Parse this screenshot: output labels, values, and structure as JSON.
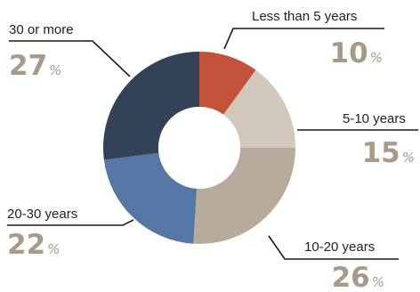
{
  "chart_data": {
    "type": "pie",
    "donut": true,
    "title": "",
    "categories": [
      "Less than 5 years",
      "5-10 years",
      "10-20 years",
      "20-30 years",
      "30 or more"
    ],
    "values": [
      10,
      15,
      26,
      22,
      27
    ],
    "unit": "%",
    "colors": [
      "#c2533a",
      "#d3c8bc",
      "#b9ab9c",
      "#5677a6",
      "#334256"
    ]
  }
}
